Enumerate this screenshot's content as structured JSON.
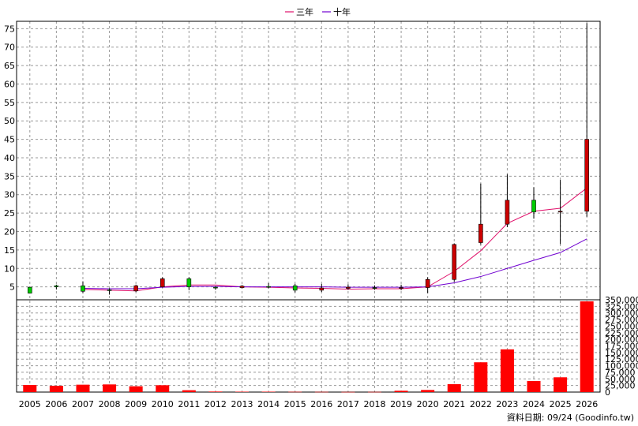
{
  "chart_data": {
    "type": "candlestick+line+bar",
    "title": "",
    "legend": [
      {
        "label": "三年",
        "color": "#e0106a"
      },
      {
        "label": "十年",
        "color": "#7000d0"
      }
    ],
    "footer": "資料日期: 09/24  (Goodinfo.tw)",
    "categories": [
      "2005",
      "2006",
      "2007",
      "2008",
      "2009",
      "2010",
      "2011",
      "2012",
      "2013",
      "2014",
      "2015",
      "2016",
      "2017",
      "2018",
      "2019",
      "2020",
      "2021",
      "2022",
      "2023",
      "2024",
      "2025",
      "2026"
    ],
    "price_axis": {
      "ylim": [
        1.5,
        77
      ],
      "ticks": [
        5,
        10,
        15,
        20,
        25,
        30,
        35,
        40,
        45,
        50,
        55,
        60,
        65,
        70,
        75
      ]
    },
    "volume_axis": {
      "ylim": [
        0,
        350000
      ],
      "ticks": [
        0,
        25000,
        50000,
        75000,
        100000,
        125000,
        150000,
        175000,
        200000,
        225000,
        250000,
        275000,
        300000,
        325000,
        350000
      ],
      "tick_labels": [
        "0",
        "25,000",
        "50,000",
        "75,000",
        "100,000",
        "125,000",
        "150,000",
        "175,000",
        "200,000",
        "225,000",
        "250,000",
        "275,000",
        "300,000",
        "325,000",
        "350,000"
      ]
    },
    "candles": [
      {
        "year": "2005",
        "open": 4.9,
        "close": 3.3,
        "high": 5.0,
        "low": 3.2
      },
      {
        "year": "2006",
        "open": 5.3,
        "close": 5.0,
        "high": 5.6,
        "low": 4.3
      },
      {
        "year": "2007",
        "open": 5.3,
        "close": 3.8,
        "high": 6.5,
        "low": 3.3
      },
      {
        "year": "2008",
        "open": 4.2,
        "close": 4.1,
        "high": 4.6,
        "low": 2.9
      },
      {
        "year": "2009",
        "open": 3.9,
        "close": 5.3,
        "high": 5.6,
        "low": 3.6
      },
      {
        "year": "2010",
        "open": 5.0,
        "close": 7.2,
        "high": 7.6,
        "low": 4.8
      },
      {
        "year": "2011",
        "open": 7.2,
        "close": 5.0,
        "high": 7.6,
        "low": 4.1
      },
      {
        "year": "2012",
        "open": 4.9,
        "close": 4.7,
        "high": 5.2,
        "low": 4.2
      },
      {
        "year": "2013",
        "open": 4.8,
        "close": 5.2,
        "high": 5.5,
        "low": 4.6
      },
      {
        "year": "2014",
        "open": 5.1,
        "close": 5.0,
        "high": 6.0,
        "low": 4.6
      },
      {
        "year": "2015",
        "open": 5.3,
        "close": 4.1,
        "high": 5.8,
        "low": 3.5
      },
      {
        "year": "2016",
        "open": 4.1,
        "close": 4.7,
        "high": 5.8,
        "low": 3.6
      },
      {
        "year": "2017",
        "open": 4.6,
        "close": 4.9,
        "high": 5.7,
        "low": 4.2
      },
      {
        "year": "2018",
        "open": 4.8,
        "close": 4.6,
        "high": 5.4,
        "low": 4.2
      },
      {
        "year": "2019",
        "open": 4.6,
        "close": 4.8,
        "high": 5.6,
        "low": 4.1
      },
      {
        "year": "2020",
        "open": 4.8,
        "close": 7.0,
        "high": 7.6,
        "low": 3.3
      },
      {
        "year": "2021",
        "open": 7.0,
        "close": 16.5,
        "high": 16.8,
        "low": 6.4
      },
      {
        "year": "2022",
        "open": 17.0,
        "close": 22.0,
        "high": 33.0,
        "low": 16.5
      },
      {
        "year": "2023",
        "open": 22.0,
        "close": 28.5,
        "high": 35.5,
        "low": 21.2
      },
      {
        "year": "2024",
        "open": 28.5,
        "close": 25.3,
        "high": 32.0,
        "low": 23.5
      },
      {
        "year": "2025",
        "open": 25.3,
        "close": 25.5,
        "high": 34.0,
        "low": 16.6
      },
      {
        "year": "2026",
        "open": 25.5,
        "close": 45.0,
        "high": 76.5,
        "low": 24.0
      }
    ],
    "series": [
      {
        "name": "三年",
        "color": "#e0106a",
        "x": [
          "2007",
          "2008",
          "2009",
          "2010",
          "2011",
          "2012",
          "2013",
          "2014",
          "2015",
          "2016",
          "2017",
          "2018",
          "2019",
          "2020",
          "2021",
          "2022",
          "2023",
          "2024",
          "2025",
          "2026"
        ],
        "values": [
          4.3,
          4.1,
          3.9,
          5.0,
          5.5,
          5.5,
          5.0,
          4.9,
          4.7,
          4.6,
          4.4,
          4.5,
          4.5,
          5.0,
          9.2,
          14.8,
          22.2,
          25.5,
          26.3,
          31.8
        ]
      },
      {
        "name": "十年",
        "color": "#7000d0",
        "x": [
          "2007",
          "2008",
          "2009",
          "2010",
          "2011",
          "2012",
          "2013",
          "2014",
          "2015",
          "2016",
          "2017",
          "2018",
          "2019",
          "2020",
          "2021",
          "2022",
          "2023",
          "2024",
          "2025",
          "2026"
        ],
        "values": [
          4.6,
          4.5,
          4.5,
          4.9,
          5.1,
          5.1,
          5.0,
          5.0,
          5.0,
          5.0,
          4.9,
          4.9,
          4.9,
          5.0,
          6.1,
          7.8,
          10.0,
          12.2,
          14.3,
          18.0
        ]
      }
    ],
    "volume": [
      27000,
      24000,
      28000,
      29000,
      22000,
      26000,
      7000,
      2000,
      1500,
      1500,
      1000,
      800,
      600,
      700,
      5000,
      8000,
      30000,
      113000,
      162000,
      42000,
      56000,
      344000
    ],
    "colors": {
      "up": "#cc0000",
      "down": "#00cc00",
      "volume": "#ff0000",
      "grid": "#999999"
    }
  }
}
